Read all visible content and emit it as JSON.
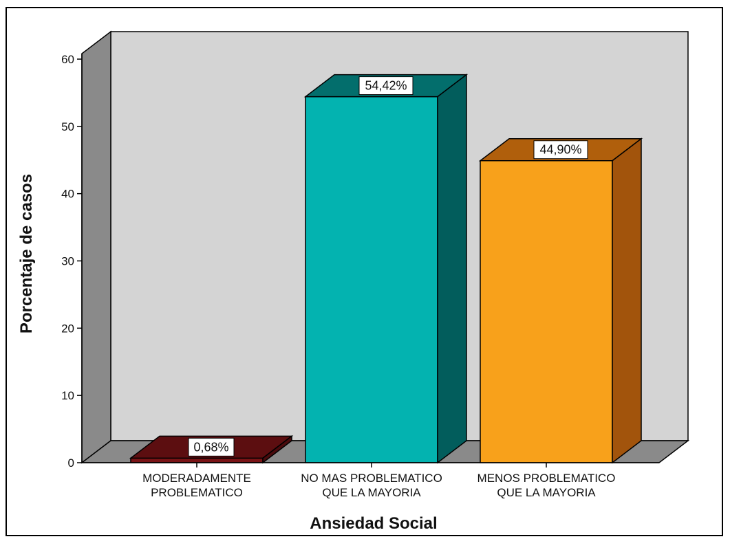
{
  "chart_data": {
    "type": "bar",
    "title": "",
    "xlabel": "Ansiedad Social",
    "ylabel": "Porcentaje de casos",
    "categories": [
      [
        "MODERADAMENTE",
        "PROBLEMATICO"
      ],
      [
        "NO MAS PROBLEMATICO",
        "QUE LA MAYORIA"
      ],
      [
        "MENOS PROBLEMATICO",
        "QUE LA MAYORIA"
      ]
    ],
    "values": [
      0.68,
      54.42,
      44.9
    ],
    "data_labels": [
      "0,68%",
      "54,42%",
      "44,90%"
    ],
    "ylim": [
      0,
      60
    ],
    "yticks": [
      0,
      10,
      20,
      30,
      40,
      50,
      60
    ],
    "grid": false,
    "legend": "none",
    "style": "3d",
    "colors": [
      {
        "front": "#7a1416",
        "top": "#5c0e10",
        "side": "#4a0a0c"
      },
      {
        "front": "#03b3b0",
        "top": "#036e6c",
        "side": "#025d5c"
      },
      {
        "front": "#f8a11b",
        "top": "#b05f0c",
        "side": "#a2540c"
      }
    ],
    "wall_color": "#d4d4d4",
    "side_wall_color": "#8a8a8a",
    "floor_color": "#8a8a8a"
  }
}
